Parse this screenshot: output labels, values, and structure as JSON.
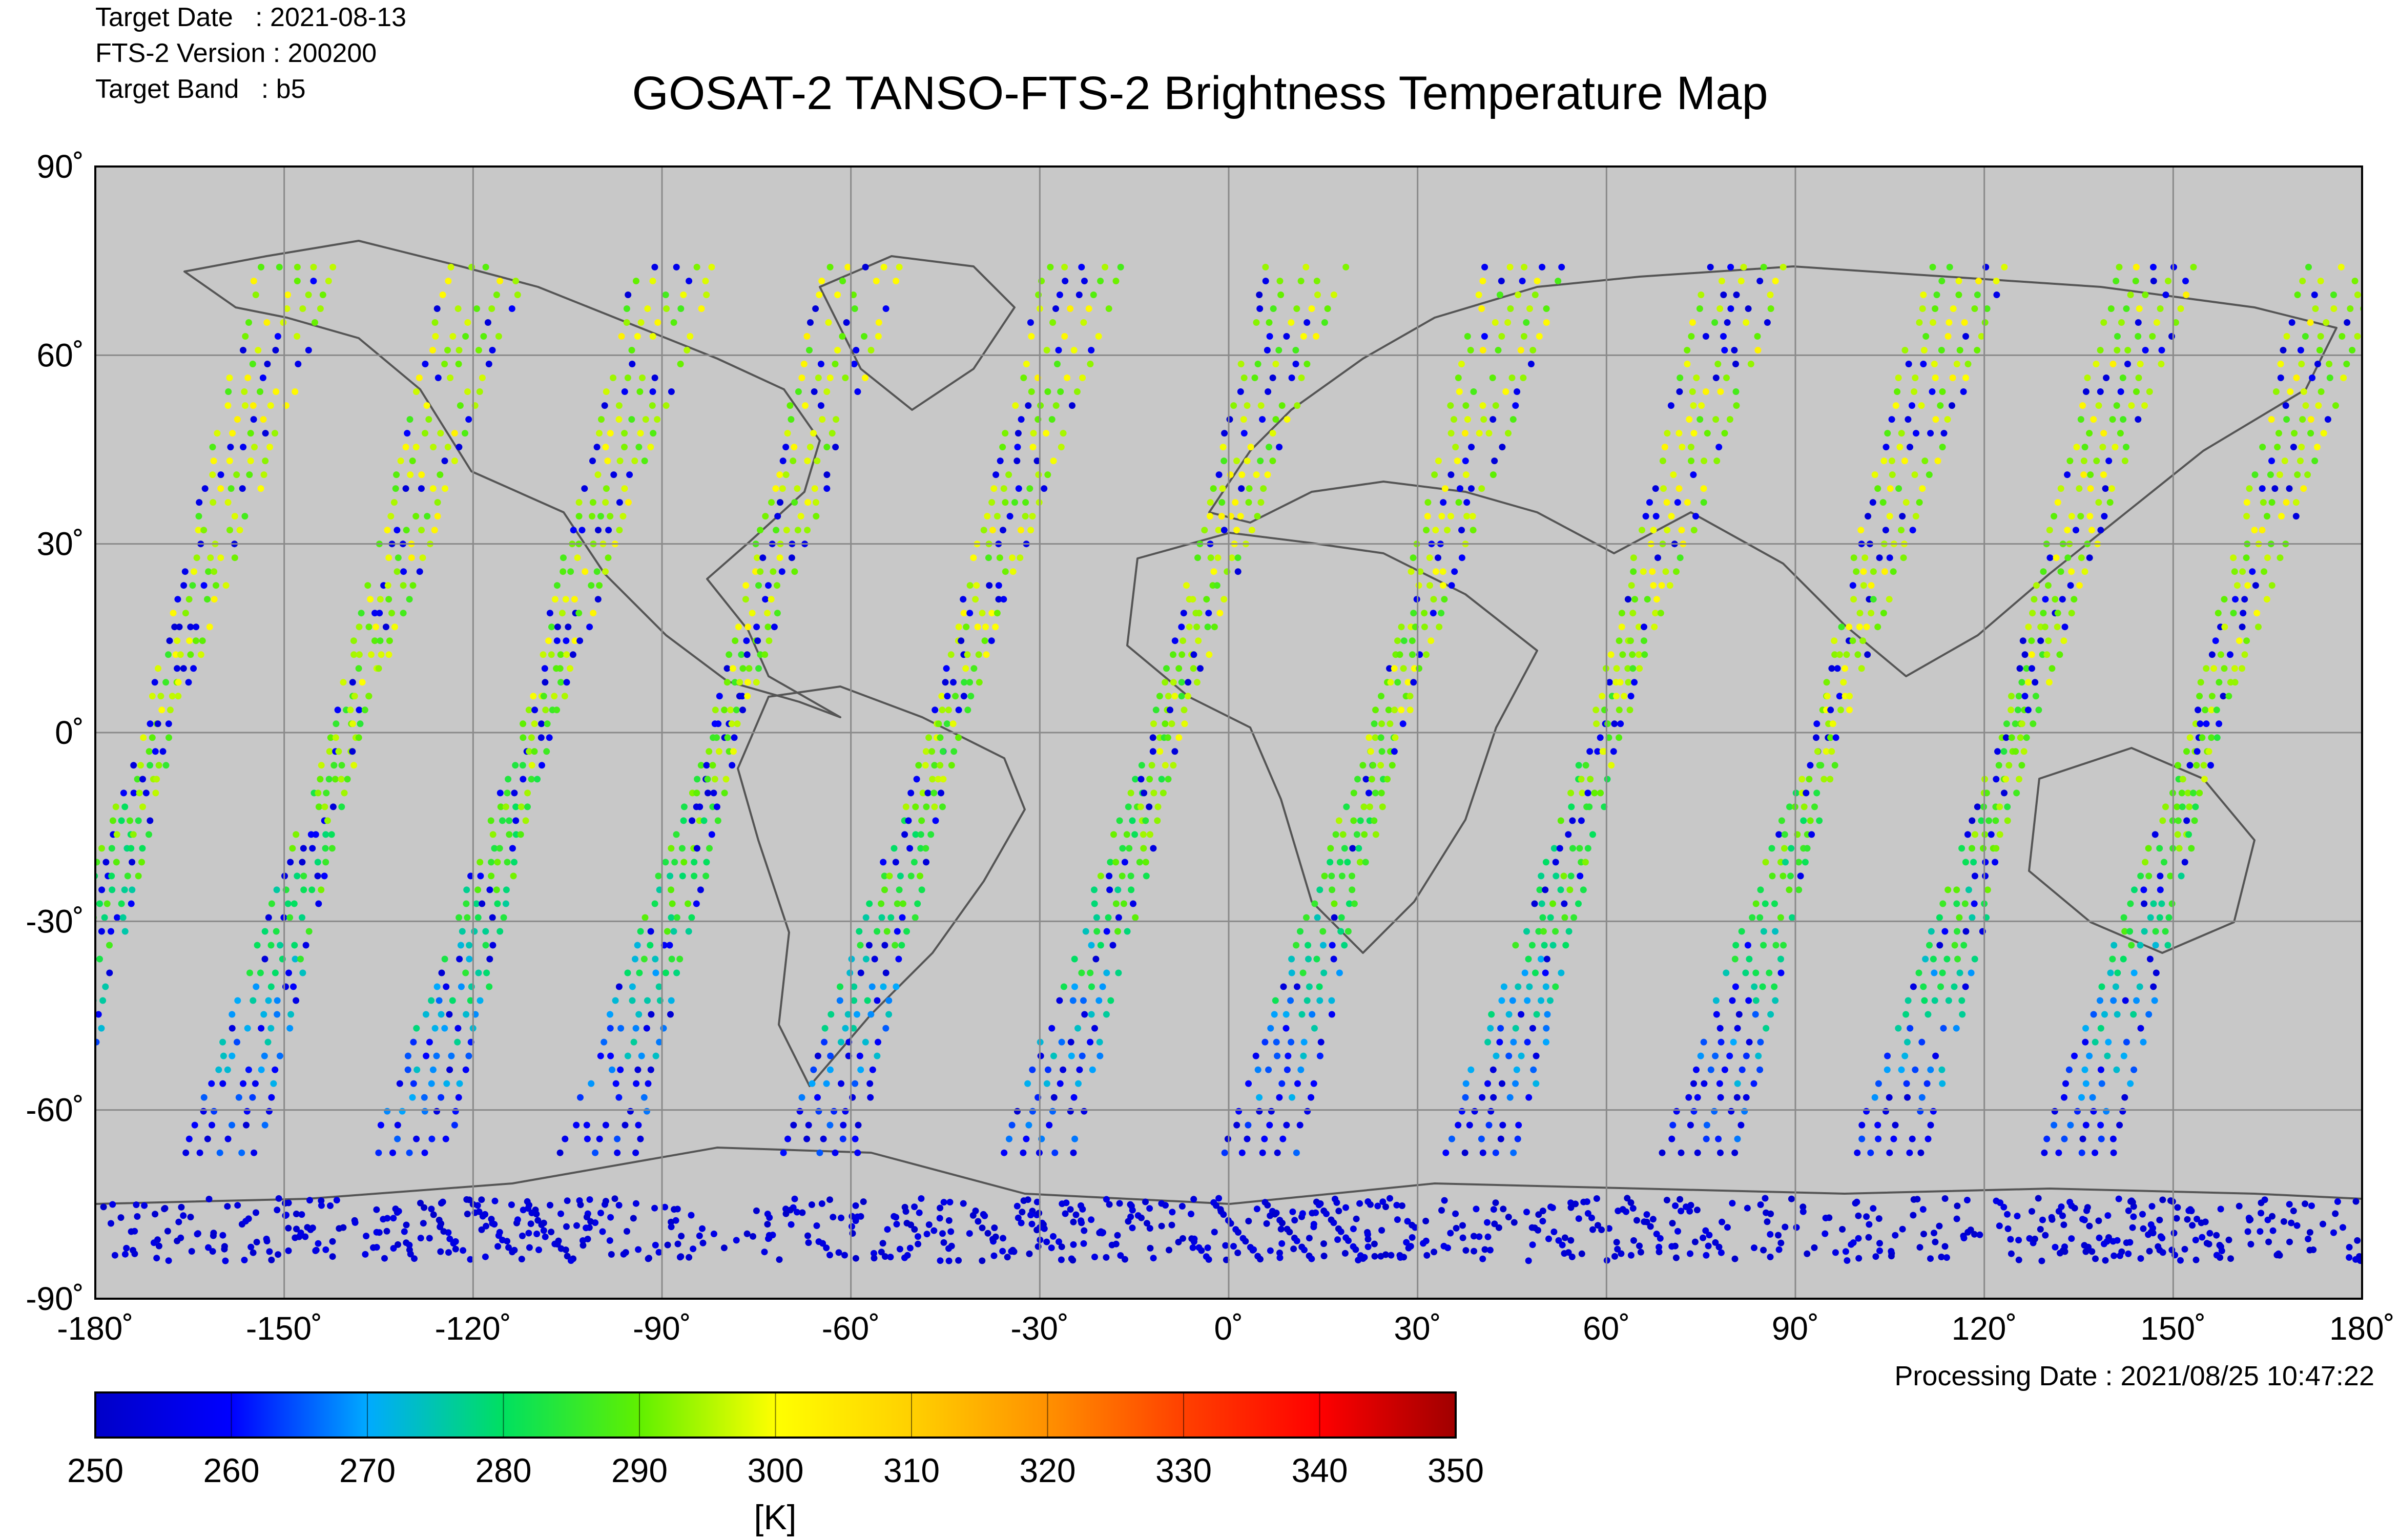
{
  "header": {
    "target_date": "Target Date   : 2021-08-13",
    "version": "FTS-2 Version : 200200",
    "band": "Target Band   : b5"
  },
  "title": "GOSAT-2 TANSO-FTS-2 Brightness Temperature Map",
  "processing_date": "Processing Date : 2021/08/25 10:47:22",
  "colors": {
    "ocean": "#c8c8c8",
    "grid": "#8a8a8a",
    "coast": "#555555",
    "colormap": [
      "#0000c8",
      "#0000ff",
      "#00aaff",
      "#00e060",
      "#60f000",
      "#ffff00",
      "#ffb000",
      "#ff6000",
      "#ff0000",
      "#a00000"
    ]
  },
  "map": {
    "projection": "equirectangular",
    "lon_range": [
      -180,
      180
    ],
    "lat_range": [
      -90,
      90
    ],
    "lat_ticks": [
      "90˚",
      "60˚",
      "30˚",
      "0˚",
      "-30˚",
      "-60˚",
      "-90˚"
    ],
    "lon_ticks": [
      "-180˚",
      "-150˚",
      "-120˚",
      "-90˚",
      "-60˚",
      "-30˚",
      "0˚",
      "30˚",
      "60˚",
      "90˚",
      "120˚",
      "150˚",
      "180˚"
    ],
    "grid": true
  },
  "colorbar": {
    "min": 250,
    "max": 350,
    "ticks": [
      "250",
      "260",
      "270",
      "280",
      "290",
      "300",
      "310",
      "320",
      "330",
      "340",
      "350"
    ],
    "unit": "[K]"
  },
  "orbit_tracks": {
    "descending_equator_lons": [
      -170,
      -140,
      -110,
      -80,
      -45,
      -10,
      25,
      60,
      95,
      125,
      155
    ],
    "sample_values_K": [
      {
        "lat": 30,
        "value": 295
      },
      {
        "lat": 0,
        "value": 292
      },
      {
        "lat": -30,
        "value": 282
      },
      {
        "lat": -60,
        "value": 262
      },
      {
        "lat": -80,
        "value": 252
      }
    ]
  }
}
